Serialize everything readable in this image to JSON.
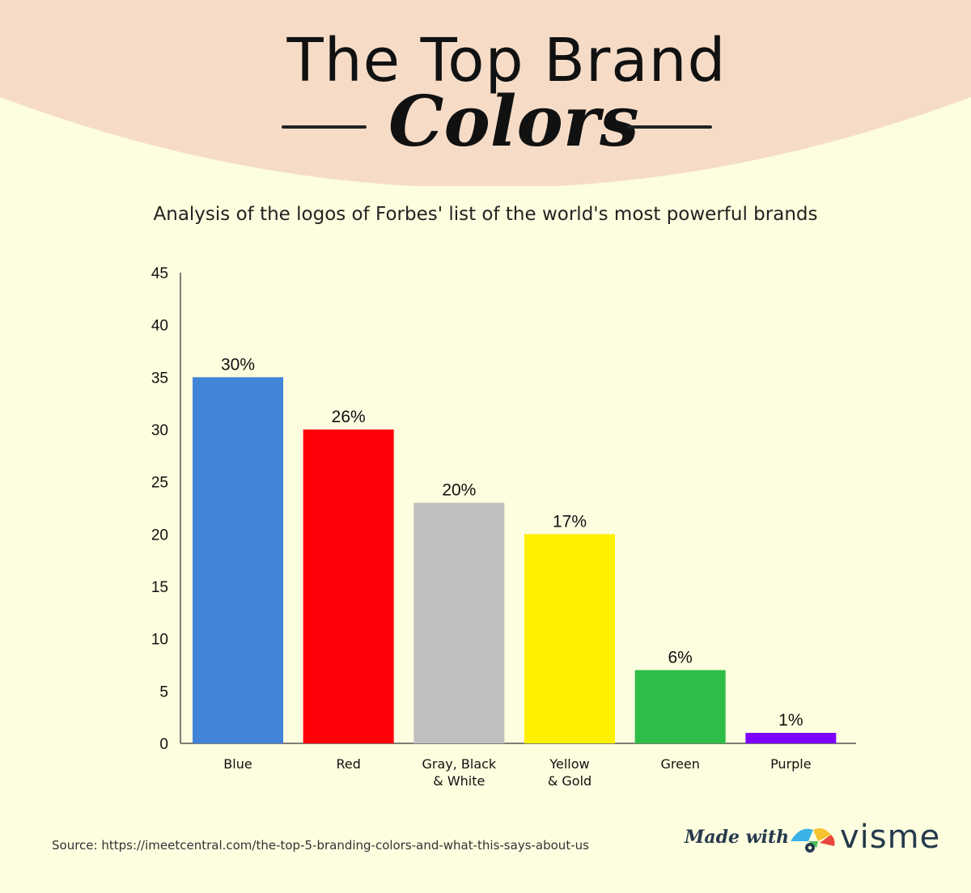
{
  "header": {
    "title_line1": "The Top Brand",
    "title_line2": "Colors",
    "subtitle": "Analysis of the logos of Forbes' list of the world's most powerful brands",
    "background_color": "#f6dcc7"
  },
  "chart_data": {
    "type": "bar",
    "categories": [
      [
        "Blue"
      ],
      [
        "Red"
      ],
      [
        "Gray, Black",
        "& White"
      ],
      [
        "Yellow",
        "& Gold"
      ],
      [
        "Green"
      ],
      [
        "Purple"
      ]
    ],
    "values": [
      35,
      30,
      23,
      20,
      7,
      1
    ],
    "data_labels": [
      "30%",
      "26%",
      "20%",
      "17%",
      "6%",
      "1%"
    ],
    "colors": [
      "#4285d8",
      "#ff0009",
      "#c0c0c0",
      "#fff000",
      "#2ebd46",
      "#7d00ff"
    ],
    "ylim": [
      0,
      45
    ],
    "yticks": [
      0,
      5,
      10,
      15,
      20,
      25,
      30,
      35,
      40,
      45
    ],
    "grid": false,
    "legend": "none"
  },
  "footer": {
    "source": "Source: https://imeetcentral.com/the-top-5-branding-colors-and-what-this-says-about-us",
    "made_with": "Made with",
    "brand": "visme"
  }
}
